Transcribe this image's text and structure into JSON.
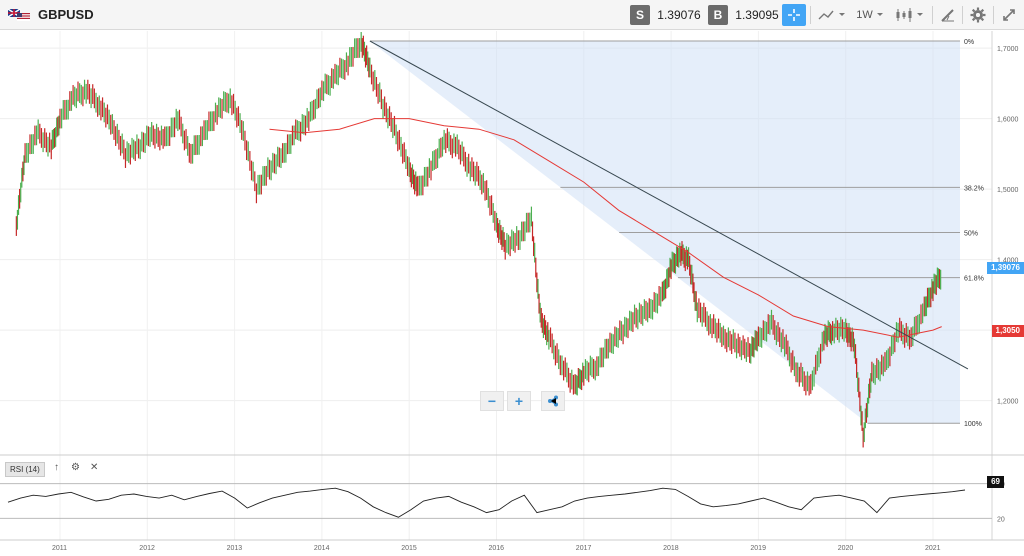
{
  "toolbar": {
    "symbol": "GBPUSD",
    "sell_label": "S",
    "sell_price": "1.39076",
    "buy_label": "B",
    "buy_price": "1.39095",
    "timeframe": "1W",
    "icons": [
      "crosshair-icon",
      "chart-type-icon",
      "candlestick-icon",
      "draw-icon",
      "gear-icon",
      "fullscreen-icon"
    ]
  },
  "chart_data": {
    "type": "line",
    "title": "",
    "x_ticks": [
      "2011",
      "2012",
      "2013",
      "2014",
      "2015",
      "2016",
      "2017",
      "2018",
      "2019",
      "2020",
      "2021"
    ],
    "y_ticks": [
      "1,7000",
      "1,6000",
      "1,5000",
      "1,4000",
      "1,2000"
    ],
    "ylim": [
      1.13,
      1.72
    ],
    "price_series": {
      "x": [
        2010.5,
        2010.6,
        2010.75,
        2010.9,
        2011.0,
        2011.15,
        2011.3,
        2011.45,
        2011.6,
        2011.75,
        2011.9,
        2012.05,
        2012.2,
        2012.35,
        2012.5,
        2012.65,
        2012.8,
        2012.95,
        2013.1,
        2013.25,
        2013.4,
        2013.55,
        2013.7,
        2013.85,
        2014.0,
        2014.15,
        2014.3,
        2014.45,
        2014.55,
        2014.7,
        2014.85,
        2015.0,
        2015.1,
        2015.25,
        2015.4,
        2015.55,
        2015.7,
        2015.85,
        2016.0,
        2016.1,
        2016.25,
        2016.4,
        2016.5,
        2016.6,
        2016.75,
        2016.9,
        2017.0,
        2017.15,
        2017.3,
        2017.45,
        2017.6,
        2017.75,
        2017.9,
        2018.0,
        2018.1,
        2018.2,
        2018.3,
        2018.45,
        2018.6,
        2018.75,
        2018.9,
        2019.0,
        2019.15,
        2019.3,
        2019.45,
        2019.6,
        2019.75,
        2019.85,
        2020.0,
        2020.1,
        2020.2,
        2020.3,
        2020.45,
        2020.6,
        2020.75,
        2020.9,
        2021.0,
        2021.1
      ],
      "y": [
        1.45,
        1.55,
        1.58,
        1.56,
        1.6,
        1.63,
        1.64,
        1.62,
        1.59,
        1.55,
        1.56,
        1.58,
        1.57,
        1.6,
        1.55,
        1.58,
        1.61,
        1.63,
        1.58,
        1.5,
        1.53,
        1.55,
        1.58,
        1.6,
        1.64,
        1.66,
        1.68,
        1.71,
        1.67,
        1.62,
        1.58,
        1.53,
        1.5,
        1.53,
        1.57,
        1.56,
        1.53,
        1.51,
        1.45,
        1.42,
        1.43,
        1.46,
        1.32,
        1.29,
        1.25,
        1.22,
        1.24,
        1.25,
        1.28,
        1.3,
        1.32,
        1.33,
        1.35,
        1.39,
        1.41,
        1.4,
        1.33,
        1.31,
        1.29,
        1.28,
        1.27,
        1.29,
        1.31,
        1.28,
        1.24,
        1.22,
        1.29,
        1.3,
        1.3,
        1.28,
        1.15,
        1.24,
        1.25,
        1.3,
        1.29,
        1.33,
        1.36,
        1.38
      ]
    },
    "ma_series": {
      "name": "",
      "x": [
        2013.4,
        2013.8,
        2014.2,
        2014.6,
        2015.0,
        2015.4,
        2015.8,
        2016.2,
        2016.6,
        2017.0,
        2017.4,
        2017.8,
        2018.2,
        2018.6,
        2019.0,
        2019.4,
        2019.8,
        2020.2,
        2020.6,
        2021.0,
        2021.1
      ],
      "y": [
        1.585,
        1.58,
        1.585,
        1.6,
        1.6,
        1.59,
        1.585,
        1.57,
        1.54,
        1.51,
        1.47,
        1.44,
        1.41,
        1.375,
        1.35,
        1.32,
        1.305,
        1.3,
        1.29,
        1.3,
        1.305
      ]
    },
    "trendline": {
      "x": [
        2014.55,
        2021.4
      ],
      "y": [
        1.71,
        1.245
      ]
    },
    "fibonacci": [
      {
        "label": "0%",
        "value": 1.71
      },
      {
        "label": "38.2%",
        "value": 1.5025
      },
      {
        "label": "50%",
        "value": 1.4385
      },
      {
        "label": "61.8%",
        "value": 1.3745
      },
      {
        "label": "100%",
        "value": 1.168
      }
    ],
    "last_price_tag": "1,39076",
    "ma_price_tag": "1,3050",
    "rsi": {
      "label": "RSI (14)",
      "levels": [
        "80",
        "20"
      ],
      "last_value": "69",
      "values": [
        48,
        55,
        60,
        58,
        62,
        65,
        57,
        50,
        53,
        60,
        62,
        58,
        55,
        60,
        52,
        58,
        63,
        67,
        55,
        38,
        47,
        55,
        60,
        65,
        67,
        70,
        72,
        66,
        55,
        40,
        30,
        22,
        35,
        50,
        55,
        58,
        48,
        40,
        30,
        35,
        50,
        60,
        30,
        35,
        40,
        50,
        55,
        58,
        60,
        62,
        65,
        68,
        72,
        70,
        58,
        45,
        40,
        42,
        45,
        50,
        55,
        48,
        40,
        35,
        55,
        58,
        60,
        55,
        50,
        30,
        55,
        58,
        60,
        62,
        64,
        66,
        69
      ]
    },
    "colors": {
      "price_up": "#4caf50",
      "price_down": "#c62828",
      "ma": "#e53935",
      "trendline": "#37474f",
      "fib_fill": "#cfe0f5",
      "fib_line": "#9e9e9e",
      "rsi": "#222222",
      "last_tag": "#42a5f5",
      "ma_tag": "#e53935"
    }
  }
}
